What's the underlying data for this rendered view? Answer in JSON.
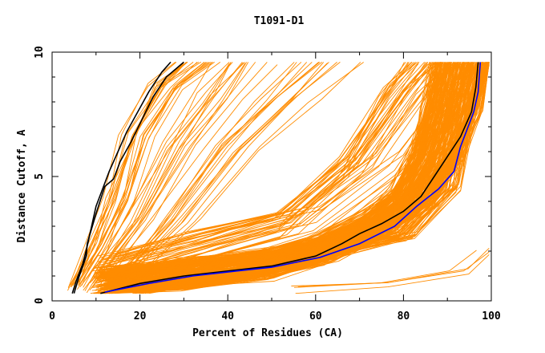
{
  "chart_data": {
    "type": "line",
    "title": "T1091-D1",
    "xlabel": "Percent of Residues (CA)",
    "ylabel": "Distance Cutoff, A",
    "xlim": [
      0,
      100
    ],
    "ylim": [
      0,
      10
    ],
    "x_ticks": [
      0,
      20,
      40,
      60,
      80,
      100
    ],
    "y_ticks": [
      0,
      5,
      10
    ],
    "grid": false,
    "legend": "none",
    "colors": {
      "models": "#ff8c00",
      "highlight_black": "#000000",
      "highlight_blue": "#0000ff",
      "frame": "#000000"
    },
    "families": [
      {
        "count": 22,
        "base": [
          [
            4,
            0.4
          ],
          [
            8,
            2
          ],
          [
            12,
            4
          ],
          [
            16,
            6.5
          ],
          [
            22,
            8.5
          ],
          [
            28,
            9.6
          ]
        ],
        "dx": [
          0,
          10
        ],
        "dy": [
          0,
          0.3
        ]
      },
      {
        "count": 30,
        "base": [
          [
            6,
            0.4
          ],
          [
            14,
            3
          ],
          [
            22,
            6
          ],
          [
            28,
            8
          ],
          [
            32,
            9.6
          ]
        ],
        "dx": [
          5,
          40
        ],
        "dy": [
          0,
          0.5
        ]
      },
      {
        "count": 40,
        "base": [
          [
            10,
            0.4
          ],
          [
            30,
            1.5
          ],
          [
            50,
            2.6
          ],
          [
            65,
            5
          ],
          [
            75,
            8
          ],
          [
            80,
            9.6
          ]
        ],
        "dx": [
          0,
          20
        ],
        "dy": [
          0,
          1.5
        ]
      },
      {
        "count": 260,
        "base": [
          [
            12,
            0.4
          ],
          [
            30,
            0.8
          ],
          [
            48,
            1.2
          ],
          [
            62,
            1.8
          ],
          [
            75,
            2.9
          ],
          [
            83,
            4
          ],
          [
            88,
            5.5
          ],
          [
            92,
            7.5
          ],
          [
            95,
            9.6
          ]
        ],
        "dx": [
          -8,
          6
        ],
        "dy": [
          -0.35,
          0.9
        ]
      },
      {
        "count": 40,
        "base": [
          [
            20,
            0.4
          ],
          [
            40,
            0.9
          ],
          [
            60,
            1.8
          ],
          [
            80,
            2.6
          ],
          [
            90,
            4.5
          ],
          [
            95,
            9.6
          ]
        ],
        "dx": [
          -4,
          4
        ],
        "dy": [
          -0.2,
          0.3
        ]
      },
      {
        "count": 4,
        "base": [
          [
            55,
            0.35
          ],
          [
            75,
            0.7
          ],
          [
            92,
            1.2
          ],
          [
            99,
            2
          ]
        ],
        "dx": [
          -2,
          4
        ],
        "dy": [
          -0.1,
          0.2
        ]
      }
    ],
    "series": [
      {
        "color": "#000000",
        "points": [
          [
            4.6,
            0.3
          ],
          [
            5.5,
            0.8
          ],
          [
            7,
            1.5
          ],
          [
            8,
            2.2
          ],
          [
            9,
            3.0
          ],
          [
            10,
            3.8
          ],
          [
            11.5,
            4.5
          ],
          [
            13,
            5.2
          ],
          [
            15,
            6.0
          ],
          [
            17,
            6.8
          ],
          [
            19.5,
            7.6
          ],
          [
            22,
            8.4
          ],
          [
            25,
            9.2
          ],
          [
            27,
            9.6
          ]
        ]
      },
      {
        "color": "#000000",
        "points": [
          [
            5,
            0.3
          ],
          [
            6,
            0.9
          ],
          [
            7.8,
            1.8
          ],
          [
            8,
            2.3
          ],
          [
            10,
            3.5
          ],
          [
            12,
            4.6
          ],
          [
            14,
            4.9
          ],
          [
            15.5,
            5.6
          ],
          [
            18,
            6.4
          ],
          [
            20.5,
            7.3
          ],
          [
            23,
            8.2
          ],
          [
            26,
            9.0
          ],
          [
            30,
            9.6
          ]
        ]
      },
      {
        "color": "#000000",
        "points": [
          [
            11,
            0.3
          ],
          [
            20,
            0.7
          ],
          [
            30,
            1.0
          ],
          [
            40,
            1.2
          ],
          [
            50,
            1.4
          ],
          [
            60,
            1.8
          ],
          [
            66,
            2.3
          ],
          [
            70,
            2.7
          ],
          [
            75,
            3.1
          ],
          [
            80,
            3.6
          ],
          [
            84,
            4.2
          ],
          [
            87,
            5.0
          ],
          [
            90,
            5.8
          ],
          [
            93,
            6.6
          ],
          [
            95.5,
            7.6
          ],
          [
            96.5,
            8.6
          ],
          [
            97,
            9.6
          ]
        ]
      },
      {
        "color": "#0000ff",
        "points": [
          [
            12,
            0.35
          ],
          [
            22,
            0.7
          ],
          [
            32,
            1.0
          ],
          [
            42,
            1.2
          ],
          [
            50,
            1.35
          ],
          [
            61,
            1.75
          ],
          [
            70,
            2.3
          ],
          [
            78,
            3.0
          ],
          [
            83,
            3.8
          ],
          [
            88,
            4.5
          ],
          [
            91.5,
            5.2
          ],
          [
            93,
            6.2
          ],
          [
            94.5,
            6.9
          ],
          [
            96,
            7.6
          ],
          [
            97,
            8.4
          ],
          [
            97.5,
            9.6
          ]
        ]
      }
    ]
  }
}
